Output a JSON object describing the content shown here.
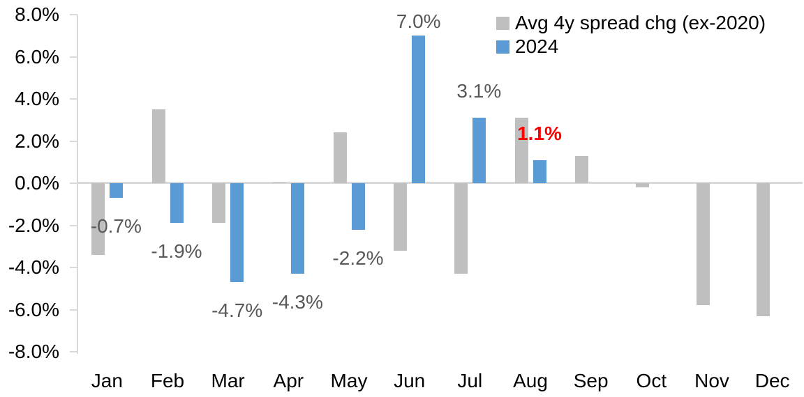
{
  "chart_data": {
    "type": "bar",
    "title": "",
    "categories": [
      "Jan",
      "Feb",
      "Mar",
      "Apr",
      "May",
      "Jun",
      "Jul",
      "Aug",
      "Sep",
      "Oct",
      "Nov",
      "Dec"
    ],
    "series": [
      {
        "name": "Avg 4y spread chg (ex-2020)",
        "color": "#BFBFBF",
        "values": [
          -3.4,
          3.5,
          -1.9,
          0.0,
          2.4,
          -3.2,
          -4.3,
          3.1,
          1.3,
          -0.2,
          -5.8,
          -6.3
        ]
      },
      {
        "name": "2024",
        "color": "#5B9BD5",
        "values": [
          -0.7,
          -1.9,
          -4.7,
          -4.3,
          -2.2,
          7.0,
          3.1,
          1.1,
          null,
          null,
          null,
          null
        ]
      }
    ],
    "data_labels": [
      {
        "month": 0,
        "text": "-0.7%",
        "color": "#595959",
        "bold": false
      },
      {
        "month": 1,
        "text": "-1.9%",
        "color": "#595959",
        "bold": false
      },
      {
        "month": 2,
        "text": "-4.7%",
        "color": "#595959",
        "bold": false
      },
      {
        "month": 3,
        "text": "-4.3%",
        "color": "#595959",
        "bold": false
      },
      {
        "month": 4,
        "text": "-2.2%",
        "color": "#595959",
        "bold": false
      },
      {
        "month": 5,
        "text": "7.0%",
        "color": "#595959",
        "bold": false
      },
      {
        "month": 6,
        "text": "3.1%",
        "color": "#595959",
        "bold": false
      },
      {
        "month": 7,
        "text": "1.1%",
        "color": "#FF0000",
        "bold": true
      }
    ],
    "y_ticks": [
      "8.0%",
      "6.0%",
      "4.0%",
      "2.0%",
      "0.0%",
      "-2.0%",
      "-4.0%",
      "-6.0%",
      "-8.0%"
    ],
    "ylim": [
      -8.0,
      8.0
    ],
    "xlabel": "",
    "ylabel": "",
    "grid": "zero-line-only",
    "legend_position": "top-right",
    "axis_color": "#D9D9D9",
    "tick_label_color": "#000000",
    "data_label_color": "#595959",
    "highlight_label_color": "#FF0000"
  }
}
